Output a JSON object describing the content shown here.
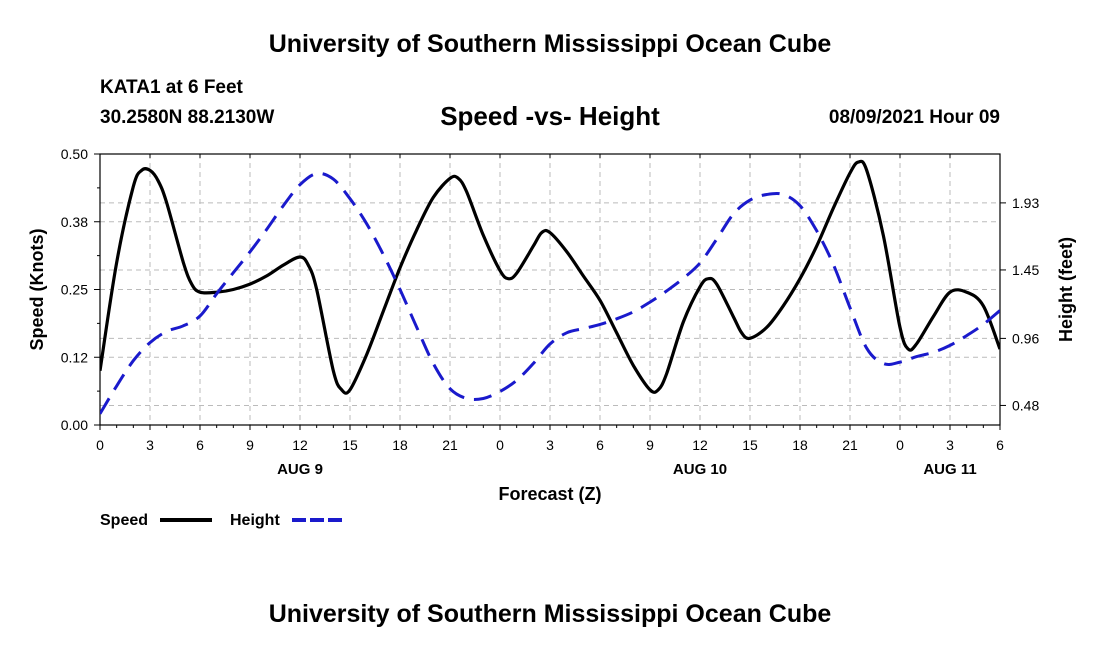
{
  "header": {
    "title": "University of Southern Mississippi Ocean Cube",
    "station": "KATA1 at 6 Feet",
    "coords": "30.2580N  88.2130W",
    "chart_title": "Speed -vs- Height",
    "datetime": "08/09/2021 Hour 09"
  },
  "footer": {
    "title": "University of Southern Mississippi Ocean Cube"
  },
  "legend": {
    "speed_label": "Speed",
    "height_label": "Height"
  },
  "colors": {
    "speed": "#000000",
    "height": "#1a1acc",
    "grid": "#bbbbbb"
  },
  "chart_data": {
    "type": "line",
    "title": "Speed -vs- Height",
    "xlabel": "Forecast (Z)",
    "ylabel": "Speed (Knots)",
    "y2label": "Height (feet)",
    "xlim": [
      0,
      54
    ],
    "ylim": [
      0,
      0.5
    ],
    "y2lim": [
      0.34,
      2.28
    ],
    "x_ticks": [
      0,
      3,
      6,
      9,
      12,
      15,
      18,
      21,
      24,
      27,
      30,
      33,
      36,
      39,
      42,
      45,
      48,
      51,
      54
    ],
    "x_tick_labels": [
      "0",
      "3",
      "6",
      "9",
      "12",
      "15",
      "18",
      "21",
      "0",
      "3",
      "6",
      "9",
      "12",
      "15",
      "18",
      "21",
      "0",
      "3",
      "6"
    ],
    "date_labels": [
      {
        "label": "AUG 9",
        "x": 12
      },
      {
        "label": "AUG 10",
        "x": 36
      },
      {
        "label": "AUG 11",
        "x": 51
      }
    ],
    "y_ticks": [
      0,
      0.125,
      0.25,
      0.375,
      0.5
    ],
    "y_tick_labels": [
      "0.00",
      "0.12",
      "0.25",
      "0.38",
      "0.50"
    ],
    "y2_ticks": [
      0.48,
      0.96,
      1.45,
      1.93
    ],
    "y2_tick_labels": [
      "0.48",
      "0.96",
      "1.45",
      "1.93"
    ],
    "grid": true,
    "series": [
      {
        "name": "Speed",
        "axis": "left",
        "style": "solid",
        "x": [
          0,
          1,
          2,
          2.5,
          3,
          3.5,
          4,
          5,
          5.5,
          6,
          7,
          8,
          9,
          10,
          11,
          12,
          12.5,
          13,
          14,
          14.5,
          15,
          16,
          17,
          18,
          19,
          20,
          21,
          21.5,
          22,
          23,
          24,
          24.5,
          25,
          26,
          26.5,
          27,
          28,
          29,
          30,
          31,
          32,
          33,
          33.5,
          34,
          35,
          36,
          36.5,
          37,
          38,
          38.5,
          39,
          40,
          41,
          42,
          43,
          44,
          45,
          45.5,
          46,
          47,
          48,
          48.5,
          49,
          50,
          51,
          52,
          53,
          54
        ],
        "values": [
          0.1,
          0.3,
          0.44,
          0.47,
          0.47,
          0.45,
          0.41,
          0.3,
          0.26,
          0.245,
          0.245,
          0.25,
          0.26,
          0.275,
          0.295,
          0.31,
          0.295,
          0.25,
          0.1,
          0.065,
          0.065,
          0.13,
          0.21,
          0.29,
          0.36,
          0.42,
          0.455,
          0.455,
          0.43,
          0.35,
          0.285,
          0.27,
          0.28,
          0.33,
          0.355,
          0.355,
          0.32,
          0.275,
          0.23,
          0.17,
          0.11,
          0.065,
          0.065,
          0.095,
          0.19,
          0.255,
          0.27,
          0.26,
          0.2,
          0.17,
          0.16,
          0.18,
          0.22,
          0.27,
          0.33,
          0.4,
          0.465,
          0.485,
          0.47,
          0.35,
          0.18,
          0.14,
          0.15,
          0.2,
          0.245,
          0.245,
          0.22,
          0.14
        ]
      },
      {
        "name": "Height",
        "axis": "right",
        "style": "dashed",
        "x": [
          0,
          1,
          2,
          3,
          4,
          5,
          6,
          7,
          8,
          9,
          10,
          11,
          12,
          13,
          14,
          15,
          16,
          17,
          18,
          19,
          20,
          21,
          22,
          23,
          24,
          25,
          26,
          27,
          28,
          29,
          30,
          31,
          32,
          33,
          34,
          35,
          36,
          37,
          38,
          39,
          40,
          41,
          42,
          43,
          44,
          45,
          46,
          47,
          48,
          49,
          50,
          51,
          52,
          53,
          54
        ],
        "values": [
          0.42,
          0.62,
          0.8,
          0.93,
          1.01,
          1.05,
          1.12,
          1.28,
          1.43,
          1.58,
          1.74,
          1.91,
          2.06,
          2.14,
          2.1,
          1.96,
          1.78,
          1.56,
          1.31,
          1.04,
          0.78,
          0.6,
          0.53,
          0.53,
          0.58,
          0.66,
          0.78,
          0.92,
          1.0,
          1.03,
          1.06,
          1.1,
          1.15,
          1.22,
          1.3,
          1.39,
          1.5,
          1.67,
          1.85,
          1.95,
          1.99,
          1.99,
          1.91,
          1.73,
          1.49,
          1.18,
          0.89,
          0.78,
          0.79,
          0.83,
          0.86,
          0.91,
          0.98,
          1.06,
          1.16
        ]
      }
    ]
  }
}
